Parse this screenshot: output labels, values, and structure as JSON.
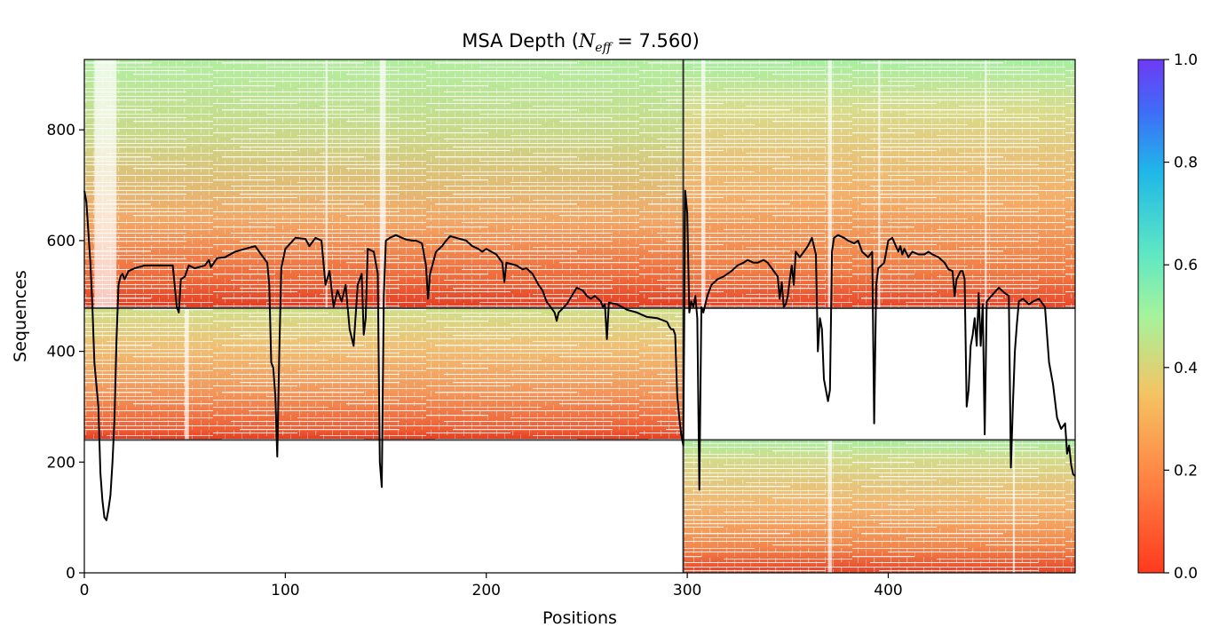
{
  "chart_data": {
    "type": "heatmap",
    "title": "MSA Depth (",
    "title_sym": "N",
    "title_sub": "eff",
    "title_eq": " =  7.560)",
    "xlabel": "Positions",
    "ylabel": "Sequences",
    "xlim": [
      0,
      493
    ],
    "ylim": [
      0,
      927
    ],
    "xticks": [
      0,
      100,
      200,
      300,
      400
    ],
    "yticks": [
      0,
      200,
      400,
      600,
      800
    ],
    "grid": false,
    "colormap": "rainbow",
    "colorbar": {
      "range": [
        0,
        1
      ],
      "ticks": [
        "0.0",
        "0.2",
        "0.4",
        "0.6",
        "0.8",
        "1.0"
      ]
    },
    "chain_boundaries": {
      "x": [
        298
      ],
      "y": [
        240,
        478
      ]
    },
    "blocks": [
      {
        "x": [
          0,
          298
        ],
        "y": [
          240,
          478
        ],
        "identity_range": [
          0.12,
          0.42
        ]
      },
      {
        "x": [
          0,
          298
        ],
        "y": [
          478,
          927
        ],
        "identity_range": [
          0.12,
          0.45
        ]
      },
      {
        "x": [
          298,
          493
        ],
        "y": [
          0,
          240
        ],
        "identity_range": [
          0.08,
          0.4
        ]
      },
      {
        "x": [
          298,
          493
        ],
        "y": [
          478,
          927
        ],
        "identity_range": [
          0.1,
          0.45
        ]
      }
    ],
    "coverage_line": [
      [
        0,
        690
      ],
      [
        1,
        670
      ],
      [
        3,
        560
      ],
      [
        4,
        480
      ],
      [
        5,
        380
      ],
      [
        7,
        300
      ],
      [
        8,
        180
      ],
      [
        9,
        130
      ],
      [
        10,
        100
      ],
      [
        11,
        95
      ],
      [
        12,
        115
      ],
      [
        13,
        140
      ],
      [
        14,
        200
      ],
      [
        15,
        280
      ],
      [
        16,
        420
      ],
      [
        17,
        520
      ],
      [
        18,
        535
      ],
      [
        19,
        540
      ],
      [
        20,
        530
      ],
      [
        22,
        545
      ],
      [
        25,
        550
      ],
      [
        30,
        555
      ],
      [
        35,
        555
      ],
      [
        40,
        555
      ],
      [
        44,
        555
      ],
      [
        46,
        480
      ],
      [
        47,
        470
      ],
      [
        48,
        530
      ],
      [
        50,
        535
      ],
      [
        52,
        555
      ],
      [
        55,
        550
      ],
      [
        60,
        555
      ],
      [
        62,
        565
      ],
      [
        63,
        552
      ],
      [
        66,
        568
      ],
      [
        70,
        570
      ],
      [
        75,
        580
      ],
      [
        80,
        585
      ],
      [
        85,
        590
      ],
      [
        88,
        575
      ],
      [
        90,
        565
      ],
      [
        91,
        560
      ],
      [
        92,
        520
      ],
      [
        93,
        380
      ],
      [
        94,
        370
      ],
      [
        95,
        320
      ],
      [
        96,
        210
      ],
      [
        97,
        400
      ],
      [
        98,
        550
      ],
      [
        100,
        585
      ],
      [
        105,
        605
      ],
      [
        110,
        603
      ],
      [
        112,
        590
      ],
      [
        115,
        605
      ],
      [
        118,
        600
      ],
      [
        120,
        520
      ],
      [
        122,
        545
      ],
      [
        124,
        480
      ],
      [
        126,
        510
      ],
      [
        128,
        490
      ],
      [
        130,
        520
      ],
      [
        132,
        440
      ],
      [
        134,
        410
      ],
      [
        136,
        520
      ],
      [
        138,
        540
      ],
      [
        139,
        430
      ],
      [
        140,
        460
      ],
      [
        141,
        585
      ],
      [
        144,
        580
      ],
      [
        146,
        540
      ],
      [
        147,
        200
      ],
      [
        148,
        155
      ],
      [
        149,
        500
      ],
      [
        150,
        600
      ],
      [
        152,
        605
      ],
      [
        155,
        610
      ],
      [
        158,
        605
      ],
      [
        160,
        602
      ],
      [
        163,
        600
      ],
      [
        165,
        600
      ],
      [
        168,
        595
      ],
      [
        170,
        555
      ],
      [
        171,
        495
      ],
      [
        172,
        540
      ],
      [
        175,
        580
      ],
      [
        178,
        590
      ],
      [
        180,
        600
      ],
      [
        182,
        608
      ],
      [
        185,
        605
      ],
      [
        190,
        600
      ],
      [
        193,
        590
      ],
      [
        196,
        585
      ],
      [
        198,
        580
      ],
      [
        200,
        585
      ],
      [
        205,
        575
      ],
      [
        208,
        560
      ],
      [
        209,
        525
      ],
      [
        210,
        560
      ],
      [
        215,
        555
      ],
      [
        218,
        548
      ],
      [
        220,
        550
      ],
      [
        223,
        540
      ],
      [
        226,
        520
      ],
      [
        228,
        510
      ],
      [
        230,
        490
      ],
      [
        232,
        480
      ],
      [
        234,
        470
      ],
      [
        235,
        455
      ],
      [
        236,
        470
      ],
      [
        240,
        485
      ],
      [
        245,
        515
      ],
      [
        248,
        510
      ],
      [
        250,
        500
      ],
      [
        252,
        495
      ],
      [
        254,
        500
      ],
      [
        257,
        490
      ],
      [
        258,
        480
      ],
      [
        259,
        485
      ],
      [
        260,
        422
      ],
      [
        261,
        488
      ],
      [
        265,
        485
      ],
      [
        270,
        475
      ],
      [
        275,
        470
      ],
      [
        280,
        462
      ],
      [
        285,
        460
      ],
      [
        290,
        453
      ],
      [
        291,
        445
      ],
      [
        292,
        440
      ],
      [
        293,
        440
      ],
      [
        294,
        430
      ],
      [
        295,
        320
      ],
      [
        296,
        280
      ],
      [
        297,
        250
      ],
      [
        298,
        230
      ],
      [
        299,
        690
      ],
      [
        300,
        650
      ],
      [
        301,
        470
      ],
      [
        302,
        490
      ],
      [
        303,
        480
      ],
      [
        304,
        500
      ],
      [
        305,
        460
      ],
      [
        306,
        150
      ],
      [
        307,
        480
      ],
      [
        308,
        470
      ],
      [
        310,
        500
      ],
      [
        312,
        520
      ],
      [
        315,
        530
      ],
      [
        318,
        535
      ],
      [
        320,
        540
      ],
      [
        322,
        545
      ],
      [
        325,
        555
      ],
      [
        328,
        560
      ],
      [
        330,
        565
      ],
      [
        333,
        560
      ],
      [
        335,
        560
      ],
      [
        338,
        565
      ],
      [
        340,
        560
      ],
      [
        342,
        550
      ],
      [
        345,
        535
      ],
      [
        346,
        495
      ],
      [
        347,
        525
      ],
      [
        348,
        480
      ],
      [
        349,
        485
      ],
      [
        350,
        500
      ],
      [
        351,
        530
      ],
      [
        352,
        555
      ],
      [
        353,
        520
      ],
      [
        354,
        580
      ],
      [
        356,
        570
      ],
      [
        358,
        580
      ],
      [
        360,
        590
      ],
      [
        362,
        605
      ],
      [
        364,
        575
      ],
      [
        365,
        400
      ],
      [
        366,
        460
      ],
      [
        367,
        440
      ],
      [
        368,
        350
      ],
      [
        370,
        310
      ],
      [
        371,
        330
      ],
      [
        372,
        580
      ],
      [
        373,
        605
      ],
      [
        375,
        610
      ],
      [
        378,
        605
      ],
      [
        380,
        600
      ],
      [
        383,
        595
      ],
      [
        385,
        600
      ],
      [
        387,
        580
      ],
      [
        390,
        570
      ],
      [
        392,
        580
      ],
      [
        393,
        270
      ],
      [
        394,
        520
      ],
      [
        395,
        550
      ],
      [
        398,
        560
      ],
      [
        400,
        600
      ],
      [
        402,
        605
      ],
      [
        405,
        580
      ],
      [
        406,
        590
      ],
      [
        407,
        575
      ],
      [
        408,
        585
      ],
      [
        410,
        570
      ],
      [
        412,
        580
      ],
      [
        415,
        575
      ],
      [
        418,
        575
      ],
      [
        420,
        580
      ],
      [
        422,
        575
      ],
      [
        425,
        570
      ],
      [
        428,
        560
      ],
      [
        430,
        548
      ],
      [
        432,
        545
      ],
      [
        433,
        500
      ],
      [
        434,
        530
      ],
      [
        436,
        545
      ],
      [
        437,
        545
      ],
      [
        438,
        530
      ],
      [
        439,
        300
      ],
      [
        440,
        330
      ],
      [
        441,
        410
      ],
      [
        442,
        430
      ],
      [
        443,
        460
      ],
      [
        444,
        410
      ],
      [
        445,
        505
      ],
      [
        446,
        410
      ],
      [
        447,
        485
      ],
      [
        448,
        250
      ],
      [
        449,
        490
      ],
      [
        450,
        495
      ],
      [
        455,
        515
      ],
      [
        458,
        505
      ],
      [
        460,
        500
      ],
      [
        461,
        190
      ],
      [
        462,
        300
      ],
      [
        463,
        400
      ],
      [
        464,
        450
      ],
      [
        465,
        490
      ],
      [
        467,
        495
      ],
      [
        470,
        485
      ],
      [
        472,
        490
      ],
      [
        475,
        495
      ],
      [
        478,
        480
      ],
      [
        480,
        380
      ],
      [
        482,
        340
      ],
      [
        484,
        280
      ],
      [
        486,
        260
      ],
      [
        488,
        270
      ],
      [
        489,
        215
      ],
      [
        490,
        230
      ],
      [
        491,
        195
      ],
      [
        492,
        178
      ],
      [
        493,
        175
      ]
    ]
  }
}
